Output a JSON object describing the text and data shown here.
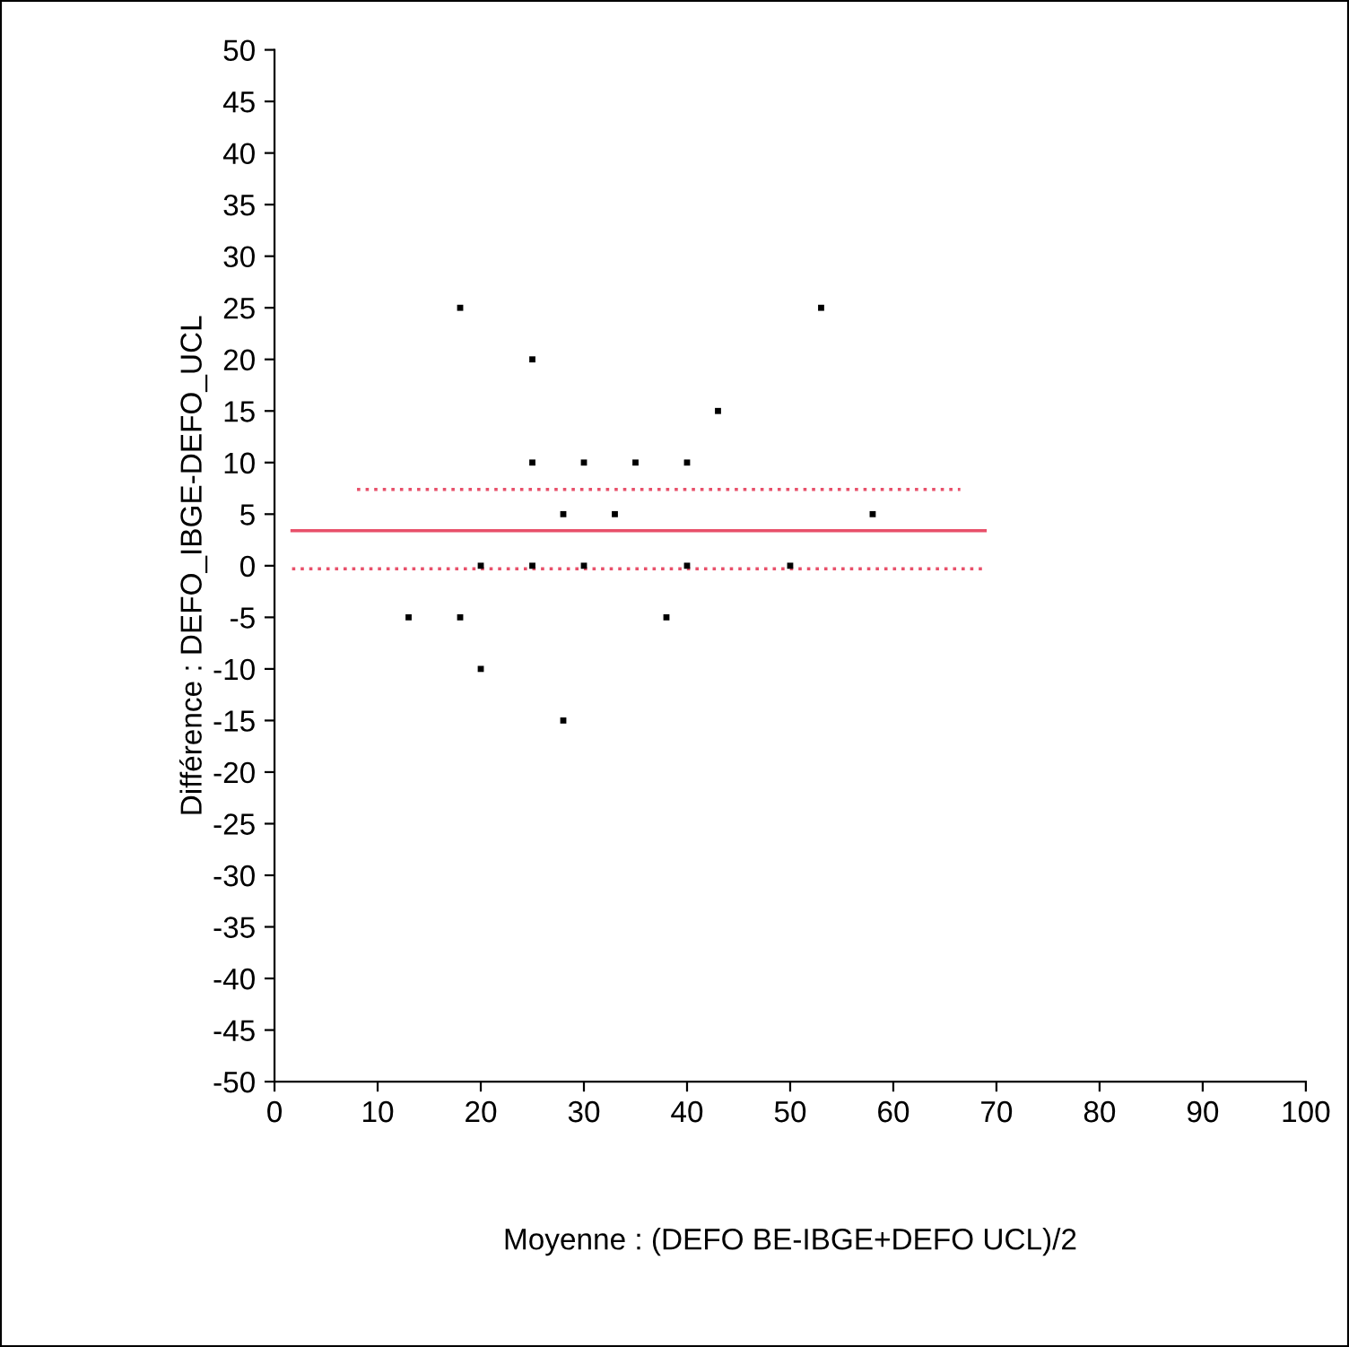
{
  "chart_data": {
    "type": "scatter",
    "xlabel": "Moyenne : (DEFO BE-IBGE+DEFO UCL)/2",
    "ylabel": "Différence : DEFO_IBGE-DEFO_UCL",
    "x": [
      18,
      53,
      25,
      43,
      25,
      30,
      35,
      40,
      28,
      33,
      58,
      20,
      25,
      30,
      40,
      50,
      13,
      18,
      38,
      20,
      28
    ],
    "series": [
      {
        "color": "#000000",
        "marker": "square",
        "values": [
          25,
          25,
          20,
          15,
          10,
          10,
          10,
          10,
          5,
          5,
          5,
          0,
          0,
          0,
          0,
          0,
          -5,
          -5,
          -5,
          -10,
          -15
        ]
      },
      {
        "type": "line",
        "color": "#e8506a",
        "line_style": "solid",
        "x": [
          1.7,
          68.9
        ],
        "values": [
          3.4,
          3.4
        ]
      },
      {
        "type": "line",
        "color": "#e8506a",
        "line_style": "dotted",
        "x": [
          8,
          66.5
        ],
        "values": [
          7.4,
          7.4
        ]
      },
      {
        "type": "line",
        "color": "#e8506a",
        "line_style": "dotted",
        "x": [
          1.7,
          68.9
        ],
        "values": [
          -0.3,
          -0.3
        ]
      }
    ],
    "xlim": [
      0,
      100
    ],
    "xticks": [
      0,
      10,
      20,
      30,
      40,
      50,
      60,
      70,
      80,
      90,
      100
    ],
    "ylim": [
      -50,
      50
    ],
    "yticks": [
      -50,
      -45,
      -40,
      -35,
      -30,
      -25,
      -20,
      -15,
      -10,
      -5,
      0,
      5,
      10,
      15,
      20,
      25,
      30,
      35,
      40,
      45,
      50
    ],
    "grid": false,
    "legend": false
  }
}
